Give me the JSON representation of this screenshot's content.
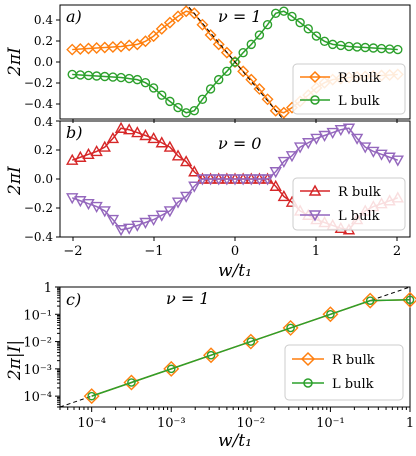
{
  "colors": {
    "orange": "#ff7f0e",
    "green": "#2ca02c",
    "red": "#d62728",
    "purple": "#9467bd"
  },
  "panels": [
    {
      "label": "a)",
      "nu": "ν = 1",
      "ylabel": "2πI",
      "yticks": [
        "0.4",
        "0.2",
        "0.0",
        "−0.2",
        "−0.4"
      ]
    },
    {
      "label": "b)",
      "nu": "ν = 0",
      "ylabel": "2πI",
      "yticks": [
        "0.4",
        "0.2",
        "0.0",
        "−0.2",
        "−0.4"
      ],
      "xlabel": "w/t₁",
      "xticks": [
        "−2",
        "−1",
        "0",
        "1",
        "2"
      ]
    },
    {
      "label": "c)",
      "nu": "ν = 1",
      "ylabel": "2π|I|",
      "xlabel": "w/t₁"
    }
  ],
  "chart_data": [
    {
      "type": "line",
      "panel": "a)",
      "title": "ν = 1",
      "xlabel": "",
      "ylabel": "2πI",
      "xlim": [
        -2.15,
        2.15
      ],
      "ylim": [
        -0.55,
        0.55
      ],
      "grid": false,
      "legend": "bottom-right",
      "series": [
        {
          "name": "R bulk",
          "color": "#ff7f0e",
          "marker": "diamond",
          "x": [
            -2.0,
            -1.9,
            -1.8,
            -1.7,
            -1.6,
            -1.5,
            -1.4,
            -1.3,
            -1.2,
            -1.1,
            -1.0,
            -0.9,
            -0.8,
            -0.7,
            -0.6,
            -0.5,
            -0.4,
            -0.3,
            -0.2,
            -0.1,
            0.0,
            0.1,
            0.2,
            0.3,
            0.4,
            0.5,
            0.6,
            0.7,
            0.8,
            0.9,
            1.0,
            1.1,
            1.2,
            1.3,
            1.4,
            1.5,
            1.6,
            1.7,
            1.8,
            1.9,
            2.0
          ],
          "y": [
            0.12,
            0.125,
            0.13,
            0.135,
            0.14,
            0.145,
            0.15,
            0.16,
            0.17,
            0.2,
            0.25,
            0.32,
            0.38,
            0.44,
            0.49,
            0.47,
            0.36,
            0.26,
            0.17,
            0.09,
            0.0,
            -0.09,
            -0.17,
            -0.26,
            -0.36,
            -0.47,
            -0.49,
            -0.44,
            -0.38,
            -0.32,
            -0.25,
            -0.2,
            -0.17,
            -0.16,
            -0.15,
            -0.145,
            -0.14,
            -0.135,
            -0.13,
            -0.125,
            -0.12
          ]
        },
        {
          "name": "L bulk",
          "color": "#2ca02c",
          "marker": "circle",
          "x": [
            -2.0,
            -1.9,
            -1.8,
            -1.7,
            -1.6,
            -1.5,
            -1.4,
            -1.3,
            -1.2,
            -1.1,
            -1.0,
            -0.9,
            -0.8,
            -0.7,
            -0.6,
            -0.5,
            -0.4,
            -0.3,
            -0.2,
            -0.1,
            0.0,
            0.1,
            0.2,
            0.3,
            0.4,
            0.5,
            0.6,
            0.7,
            0.8,
            0.9,
            1.0,
            1.1,
            1.2,
            1.3,
            1.4,
            1.5,
            1.6,
            1.7,
            1.8,
            1.9,
            2.0
          ],
          "y": [
            -0.12,
            -0.125,
            -0.13,
            -0.135,
            -0.14,
            -0.145,
            -0.15,
            -0.16,
            -0.17,
            -0.2,
            -0.25,
            -0.32,
            -0.38,
            -0.44,
            -0.49,
            -0.47,
            -0.36,
            -0.26,
            -0.17,
            -0.09,
            0.0,
            0.09,
            0.17,
            0.26,
            0.36,
            0.47,
            0.49,
            0.44,
            0.38,
            0.32,
            0.25,
            0.2,
            0.17,
            0.16,
            0.15,
            0.145,
            0.14,
            0.135,
            0.13,
            0.125,
            0.12
          ]
        }
      ],
      "reference_line": {
        "style": "dashed",
        "x": [
          -0.62,
          0.62
        ],
        "y": [
          0.58,
          -0.58
        ]
      }
    },
    {
      "type": "line",
      "panel": "b)",
      "title": "ν = 0",
      "xlabel": "w/t₁",
      "ylabel": "2πI",
      "xlim": [
        -2.15,
        2.15
      ],
      "ylim": [
        -0.4,
        0.4
      ],
      "grid": false,
      "legend": "bottom-right",
      "series": [
        {
          "name": "R bulk",
          "color": "#d62728",
          "marker": "triangle-up",
          "x": [
            -2.0,
            -1.9,
            -1.8,
            -1.7,
            -1.6,
            -1.5,
            -1.4,
            -1.3,
            -1.2,
            -1.1,
            -1.0,
            -0.9,
            -0.8,
            -0.7,
            -0.6,
            -0.5,
            -0.4,
            -0.3,
            -0.2,
            -0.1,
            0.0,
            0.1,
            0.2,
            0.3,
            0.4,
            0.5,
            0.6,
            0.7,
            0.8,
            0.9,
            1.0,
            1.1,
            1.2,
            1.3,
            1.4,
            1.5,
            1.6,
            1.7,
            1.8,
            1.9,
            2.0
          ],
          "y": [
            0.13,
            0.15,
            0.17,
            0.19,
            0.22,
            0.28,
            0.35,
            0.34,
            0.32,
            0.3,
            0.28,
            0.25,
            0.22,
            0.16,
            0.12,
            0.05,
            0.0,
            0.0,
            0.0,
            0.0,
            0.0,
            0.0,
            0.0,
            0.0,
            0.0,
            -0.05,
            -0.12,
            -0.16,
            -0.22,
            -0.25,
            -0.28,
            -0.3,
            -0.32,
            -0.34,
            -0.35,
            -0.28,
            -0.22,
            -0.19,
            -0.17,
            -0.15,
            -0.13
          ]
        },
        {
          "name": "L bulk",
          "color": "#9467bd",
          "marker": "triangle-down",
          "x": [
            -2.0,
            -1.9,
            -1.8,
            -1.7,
            -1.6,
            -1.5,
            -1.4,
            -1.3,
            -1.2,
            -1.1,
            -1.0,
            -0.9,
            -0.8,
            -0.7,
            -0.6,
            -0.5,
            -0.4,
            -0.3,
            -0.2,
            -0.1,
            0.0,
            0.1,
            0.2,
            0.3,
            0.4,
            0.5,
            0.6,
            0.7,
            0.8,
            0.9,
            1.0,
            1.1,
            1.2,
            1.3,
            1.4,
            1.5,
            1.6,
            1.7,
            1.8,
            1.9,
            2.0
          ],
          "y": [
            -0.13,
            -0.15,
            -0.17,
            -0.19,
            -0.22,
            -0.28,
            -0.35,
            -0.34,
            -0.32,
            -0.3,
            -0.28,
            -0.25,
            -0.22,
            -0.16,
            -0.12,
            -0.05,
            0.0,
            0.0,
            0.0,
            0.0,
            0.0,
            0.0,
            0.0,
            0.0,
            0.0,
            0.05,
            0.12,
            0.16,
            0.22,
            0.25,
            0.28,
            0.3,
            0.32,
            0.34,
            0.35,
            0.28,
            0.22,
            0.19,
            0.17,
            0.15,
            0.13
          ]
        }
      ]
    },
    {
      "type": "line",
      "panel": "c)",
      "title": "ν = 1",
      "xlabel": "w/t₁",
      "ylabel": "2π|I|",
      "xscale": "log",
      "yscale": "log",
      "xlim": [
        4e-05,
        1.0
      ],
      "ylim": [
        4e-05,
        1.0
      ],
      "grid": false,
      "legend": "bottom-right",
      "xticks": [
        "10⁻⁴",
        "10⁻³",
        "10⁻²",
        "10⁻¹",
        "1"
      ],
      "yticks": [
        "1",
        "10⁻¹",
        "10⁻²",
        "10⁻³",
        "10⁻⁴"
      ],
      "series": [
        {
          "name": "R bulk",
          "color": "#ff7f0e",
          "marker": "diamond",
          "x": [
            0.0001,
            0.000316,
            0.001,
            0.00316,
            0.01,
            0.0316,
            0.1,
            0.316,
            1.0
          ],
          "y": [
            0.0001,
            0.000316,
            0.001,
            0.00316,
            0.01,
            0.0316,
            0.1,
            0.316,
            0.34
          ]
        },
        {
          "name": "L bulk",
          "color": "#2ca02c",
          "marker": "circle",
          "x": [
            0.0001,
            0.000316,
            0.001,
            0.00316,
            0.01,
            0.0316,
            0.1,
            0.316,
            1.0
          ],
          "y": [
            0.0001,
            0.000316,
            0.001,
            0.00316,
            0.01,
            0.0316,
            0.1,
            0.316,
            0.34
          ]
        }
      ],
      "reference_line": {
        "style": "dashed",
        "relation": "y = x"
      }
    }
  ]
}
